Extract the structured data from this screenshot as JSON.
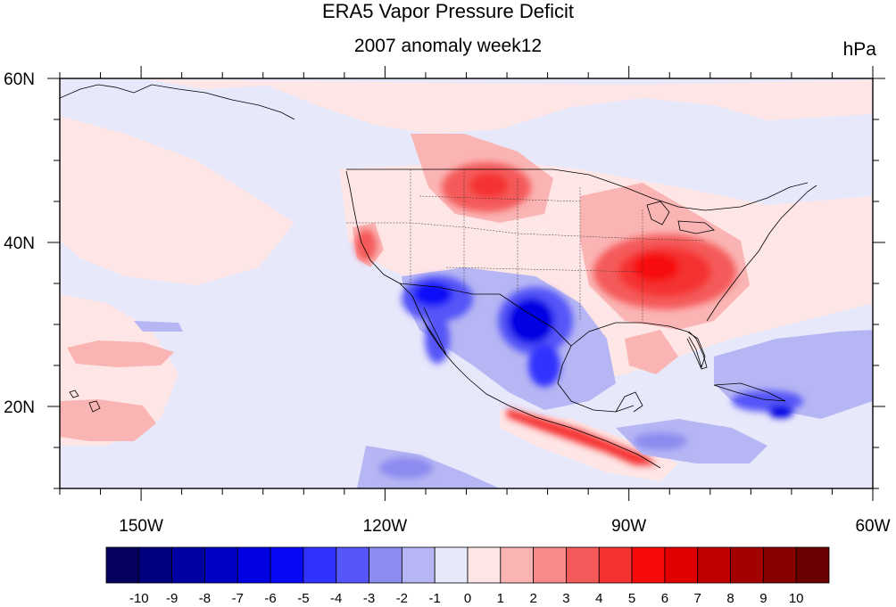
{
  "title": "ERA5 Vapor Pressure Deficit",
  "subtitle": "2007 anomaly week12",
  "units": "hPa",
  "map": {
    "lon_range": [
      -160,
      -60
    ],
    "lat_range": [
      10,
      60
    ],
    "x_ticks": [
      {
        "lon": -150,
        "label": "150W"
      },
      {
        "lon": -120,
        "label": "120W"
      },
      {
        "lon": -90,
        "label": "90W"
      },
      {
        "lon": -60,
        "label": "60W"
      }
    ],
    "y_ticks": [
      {
        "lat": 60,
        "label": "60N"
      },
      {
        "lat": 40,
        "label": "40N"
      },
      {
        "lat": 20,
        "label": "20N"
      }
    ]
  },
  "colorbar": {
    "labels": [
      "-10",
      "-9",
      "-8",
      "-7",
      "-6",
      "-5",
      "-4",
      "-3",
      "-2",
      "-1",
      "0",
      "1",
      "2",
      "3",
      "4",
      "5",
      "6",
      "7",
      "8",
      "9",
      "10"
    ],
    "colors": [
      "#05005e",
      "#00007f",
      "#0000a3",
      "#0000c4",
      "#0000e3",
      "#0808f9",
      "#3232ff",
      "#5555f8",
      "#8b8bf0",
      "#b6b6f4",
      "#e8e8fb",
      "#ffe6e6",
      "#fbb4b4",
      "#f88a8a",
      "#f55a5a",
      "#f53131",
      "#f70a0a",
      "#e00000",
      "#c00000",
      "#a30000",
      "#860000",
      "#6b0000"
    ]
  }
}
